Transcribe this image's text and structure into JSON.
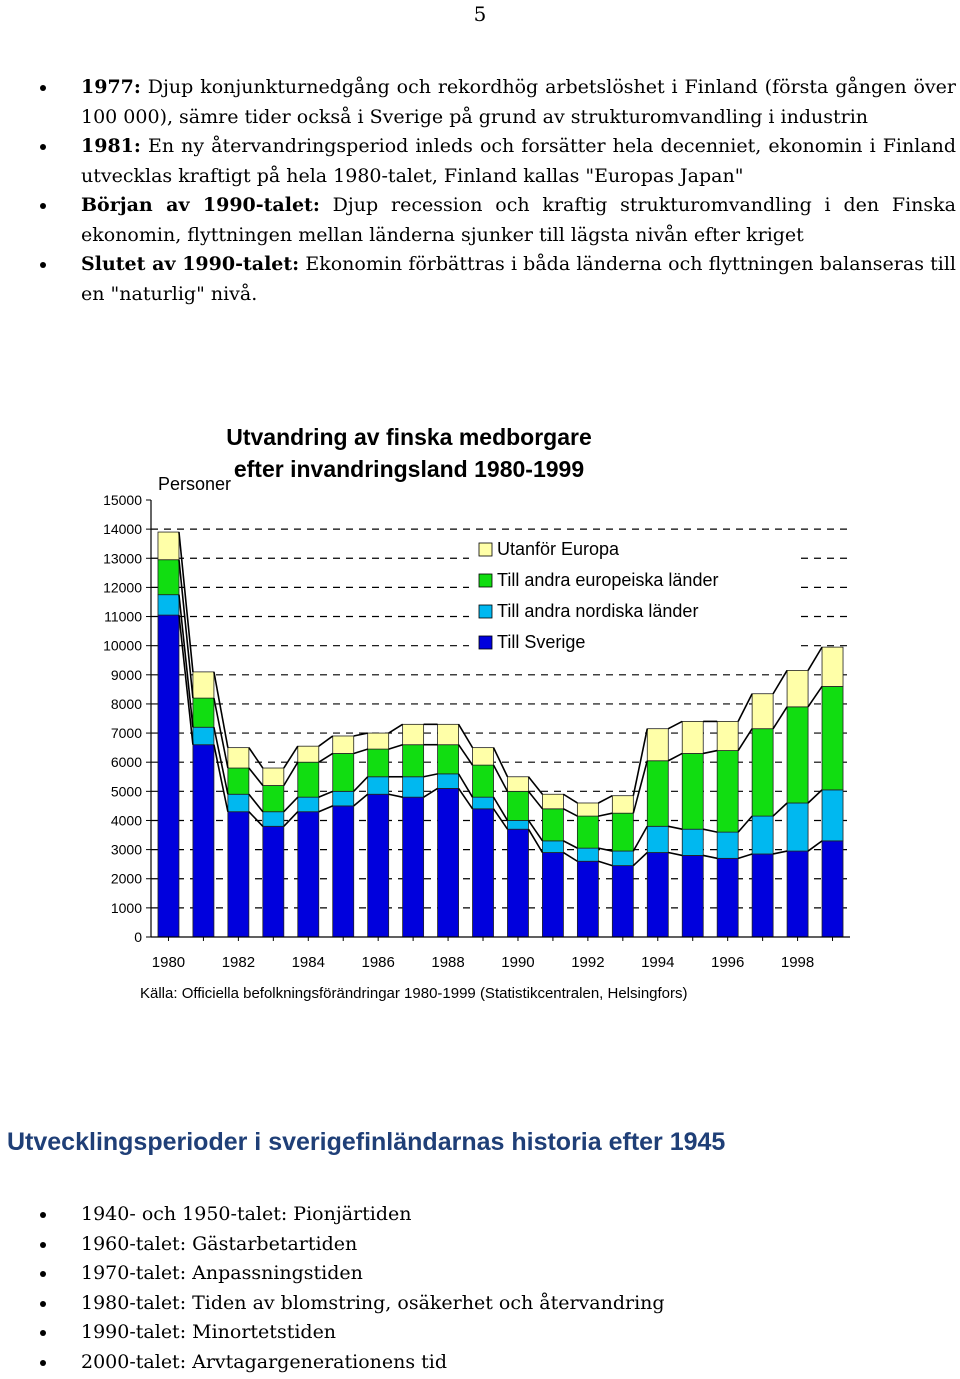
{
  "page_number": "5",
  "intro_bullets": [
    {
      "lead": "1977:",
      "text": " Djup konjunkturnedgång och rekordhög arbetslöshet i Finland (första gången över 100 000), sämre tider också i Sverige på grund av strukturomvandling i industrin"
    },
    {
      "lead": "1981:",
      "text": " En ny återvandringsperiod inleds och forsätter hela decenniet, ekonomin i Finland utvecklas kraftigt på hela 1980-talet, Finland kallas \"Europas Japan\""
    },
    {
      "lead": "Början av 1990-talet:",
      "text": " Djup recession och kraftig strukturomvandling i den Finska ekonomin, flyttningen mellan länderna sjunker till lägsta nivån efter kriget"
    },
    {
      "lead": "Slutet av 1990-talet:",
      "text": " Ekonomin förbättras i båda länderna och flyttningen balanseras till en \"naturlig\" nivå."
    }
  ],
  "chart_data": {
    "type": "bar",
    "stacked": true,
    "title": "Utvandring av finska medborgare",
    "subtitle": "efter invandringsland 1980-1999",
    "ylabel": "Personer",
    "ylim": [
      0,
      15000
    ],
    "yticks": [
      0,
      1000,
      2000,
      3000,
      4000,
      5000,
      6000,
      7000,
      8000,
      9000,
      10000,
      11000,
      12000,
      13000,
      14000,
      15000
    ],
    "categories": [
      "1980",
      "1981",
      "1982",
      "1983",
      "1984",
      "1985",
      "1986",
      "1987",
      "1988",
      "1989",
      "1990",
      "1991",
      "1992",
      "1993",
      "1994",
      "1995",
      "1996",
      "1997",
      "1998",
      "1999"
    ],
    "xtick_labels": [
      "1980",
      "1982",
      "1984",
      "1986",
      "1988",
      "1990",
      "1992",
      "1994",
      "1996",
      "1998"
    ],
    "grid": "dashed",
    "legend_position": "top-right",
    "source": "Källa: Officiella befolkningsförändringar 1980-1999 (Statistikcentralen, Helsingfors)",
    "series": [
      {
        "name": "Till Sverige",
        "color": "#0000dd",
        "values": [
          11050,
          6600,
          4300,
          3800,
          4300,
          4500,
          4900,
          4800,
          5100,
          4400,
          3700,
          2900,
          2600,
          2450,
          2900,
          2800,
          2700,
          2850,
          2950,
          3300
        ]
      },
      {
        "name": "Till andra nordiska länder",
        "color": "#00b8f0",
        "values": [
          700,
          600,
          600,
          500,
          500,
          500,
          600,
          700,
          500,
          400,
          300,
          400,
          450,
          500,
          900,
          900,
          900,
          1300,
          1650,
          1750
        ]
      },
      {
        "name": "Till andra europeiska länder",
        "color": "#11dd11",
        "values": [
          1200,
          1000,
          900,
          900,
          1200,
          1300,
          950,
          1100,
          1000,
          1100,
          1000,
          1100,
          1100,
          1300,
          2250,
          2600,
          2800,
          3000,
          3300,
          3550
        ]
      },
      {
        "name": "Utanför Europa",
        "color": "#ffffa8",
        "values": [
          950,
          900,
          700,
          600,
          550,
          600,
          550,
          700,
          700,
          600,
          500,
          500,
          450,
          600,
          1100,
          1100,
          1000,
          1200,
          1250,
          1350
        ]
      }
    ]
  },
  "section_heading": "Utvecklingsperioder i sverigefinländarnas historia efter 1945",
  "period_bullets": [
    "1940- och 1950-talet: Pionjärtiden",
    "1960-talet: Gästarbetartiden",
    "1970-talet: Anpassningstiden",
    "1980-talet: Tiden av blomstring, osäkerhet och återvandring",
    "1990-talet: Minortetstiden",
    "2000-talet: Arvtagargenerationens tid"
  ]
}
